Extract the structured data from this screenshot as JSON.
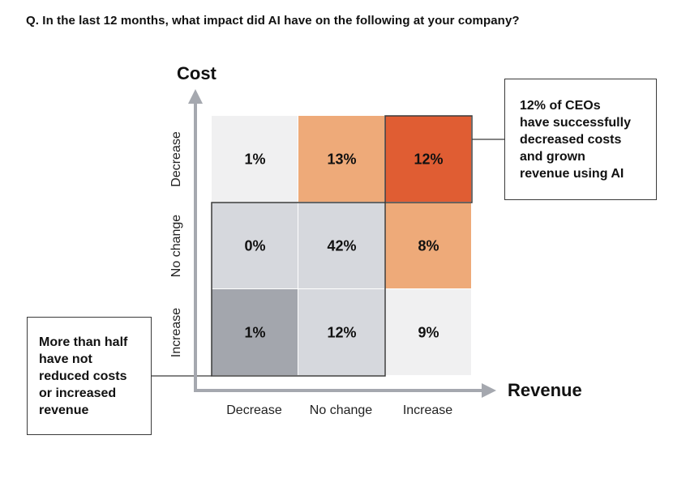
{
  "question": "Q. In the last 12 months, what impact did AI have on the following at your company?",
  "chart_data": {
    "type": "heatmap",
    "title": "Q. In the last 12 months, what impact did AI have on the following at your company?",
    "xlabel": "Revenue",
    "ylabel": "Cost",
    "x_categories": [
      "Decrease",
      "No change",
      "Increase"
    ],
    "y_categories": [
      "Decrease",
      "No change",
      "Increase"
    ],
    "cells": [
      {
        "cost": "Decrease",
        "revenue": "Decrease",
        "value": 1,
        "label": "1%",
        "color": "#f0f0f1"
      },
      {
        "cost": "Decrease",
        "revenue": "No change",
        "value": 13,
        "label": "13%",
        "color": "#eeaa79"
      },
      {
        "cost": "Decrease",
        "revenue": "Increase",
        "value": 12,
        "label": "12%",
        "color": "#e05d33"
      },
      {
        "cost": "No change",
        "revenue": "Decrease",
        "value": 0,
        "label": "0%",
        "color": "#d6d8dd"
      },
      {
        "cost": "No change",
        "revenue": "No change",
        "value": 42,
        "label": "42%",
        "color": "#d6d8dd"
      },
      {
        "cost": "No change",
        "revenue": "Increase",
        "value": 8,
        "label": "8%",
        "color": "#eeaa79"
      },
      {
        "cost": "Increase",
        "revenue": "Decrease",
        "value": 1,
        "label": "1%",
        "color": "#a3a6ad"
      },
      {
        "cost": "Increase",
        "revenue": "No change",
        "value": 12,
        "label": "12%",
        "color": "#d6d8dd"
      },
      {
        "cost": "Increase",
        "revenue": "Increase",
        "value": 9,
        "label": "9%",
        "color": "#f0f0f1"
      }
    ],
    "annotations": [
      {
        "id": "top",
        "lines": [
          "12% of CEOs",
          "have successfully",
          "decreased costs",
          "and grown",
          "revenue using AI"
        ]
      },
      {
        "id": "bottom",
        "lines": [
          "More than half",
          "have not",
          "reduced costs",
          "or increased",
          "revenue"
        ]
      }
    ],
    "colors": {
      "axis": "#a5a8af",
      "outline": "#3a3a3a"
    }
  }
}
